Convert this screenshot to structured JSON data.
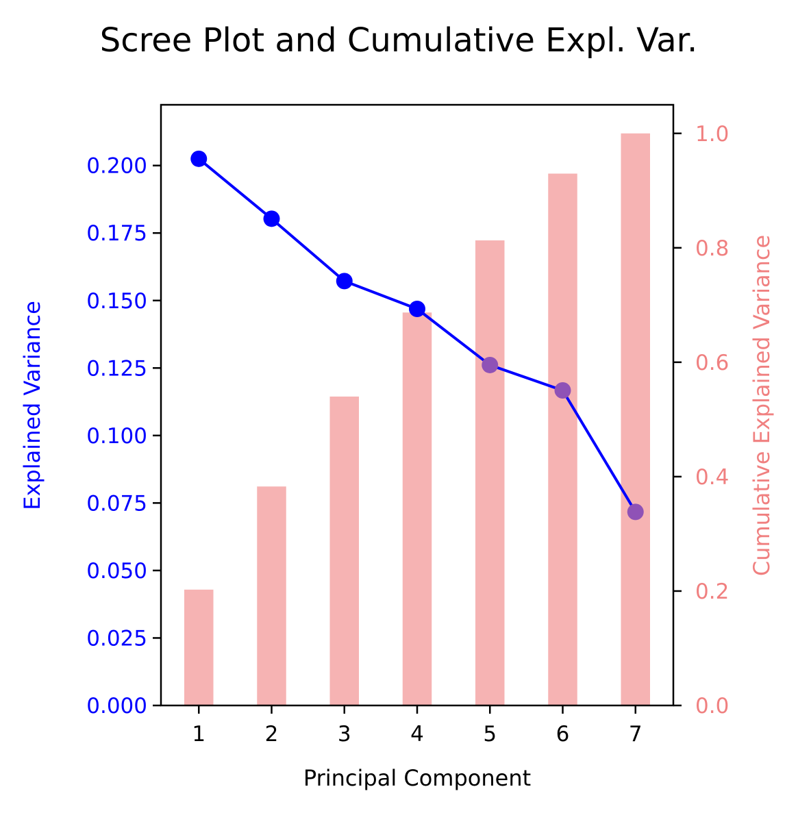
{
  "chart_data": {
    "type": "bar+line",
    "title": "Scree Plot and Cumulative Expl. Var.",
    "xlabel": "Principal Component",
    "ylabel_left": "Explained Variance",
    "ylabel_right": "Cumulative Explained Variance",
    "categories": [
      "1",
      "2",
      "3",
      "4",
      "5",
      "6",
      "7"
    ],
    "x": [
      1,
      2,
      3,
      4,
      5,
      6,
      7
    ],
    "xlim": [
      0.48,
      7.52
    ],
    "series": [
      {
        "type": "line",
        "axis": "left",
        "values": [
          0.2025,
          0.1803,
          0.1572,
          0.1469,
          0.1261,
          0.1167,
          0.0717
        ],
        "color": "#0000ff",
        "marker_colors": [
          "#0000ff",
          "#0000ff",
          "#0000ff",
          "#0000ff",
          "#8f52b6",
          "#8f52b6",
          "#8f52b6"
        ],
        "segment_colors": [
          "#0000ff",
          "#0000ff",
          "#0000ff",
          "#0000ff",
          "#0000ff",
          "#0000ff"
        ]
      },
      {
        "type": "bar",
        "axis": "right",
        "values": [
          0.2025,
          0.3828,
          0.54,
          0.6869,
          0.813,
          0.9297,
          1.0
        ],
        "color": "#f08080",
        "opacity": 0.6
      }
    ],
    "ylim_left": [
      0,
      0.2225
    ],
    "ylim_right": [
      0,
      1.05
    ],
    "yticks_left": [
      "0.000",
      "0.025",
      "0.050",
      "0.075",
      "0.100",
      "0.125",
      "0.150",
      "0.175",
      "0.200"
    ],
    "yticks_left_values": [
      0,
      0.025,
      0.05,
      0.075,
      0.1,
      0.125,
      0.15,
      0.175,
      0.2
    ],
    "yticks_right": [
      "0.0",
      "0.2",
      "0.4",
      "0.6",
      "0.8",
      "1.0"
    ],
    "yticks_right_values": [
      0,
      0.2,
      0.4,
      0.6,
      0.8,
      1.0
    ],
    "left_axis_color": "#0000ff",
    "right_axis_color": "#f08080",
    "grid": false
  }
}
